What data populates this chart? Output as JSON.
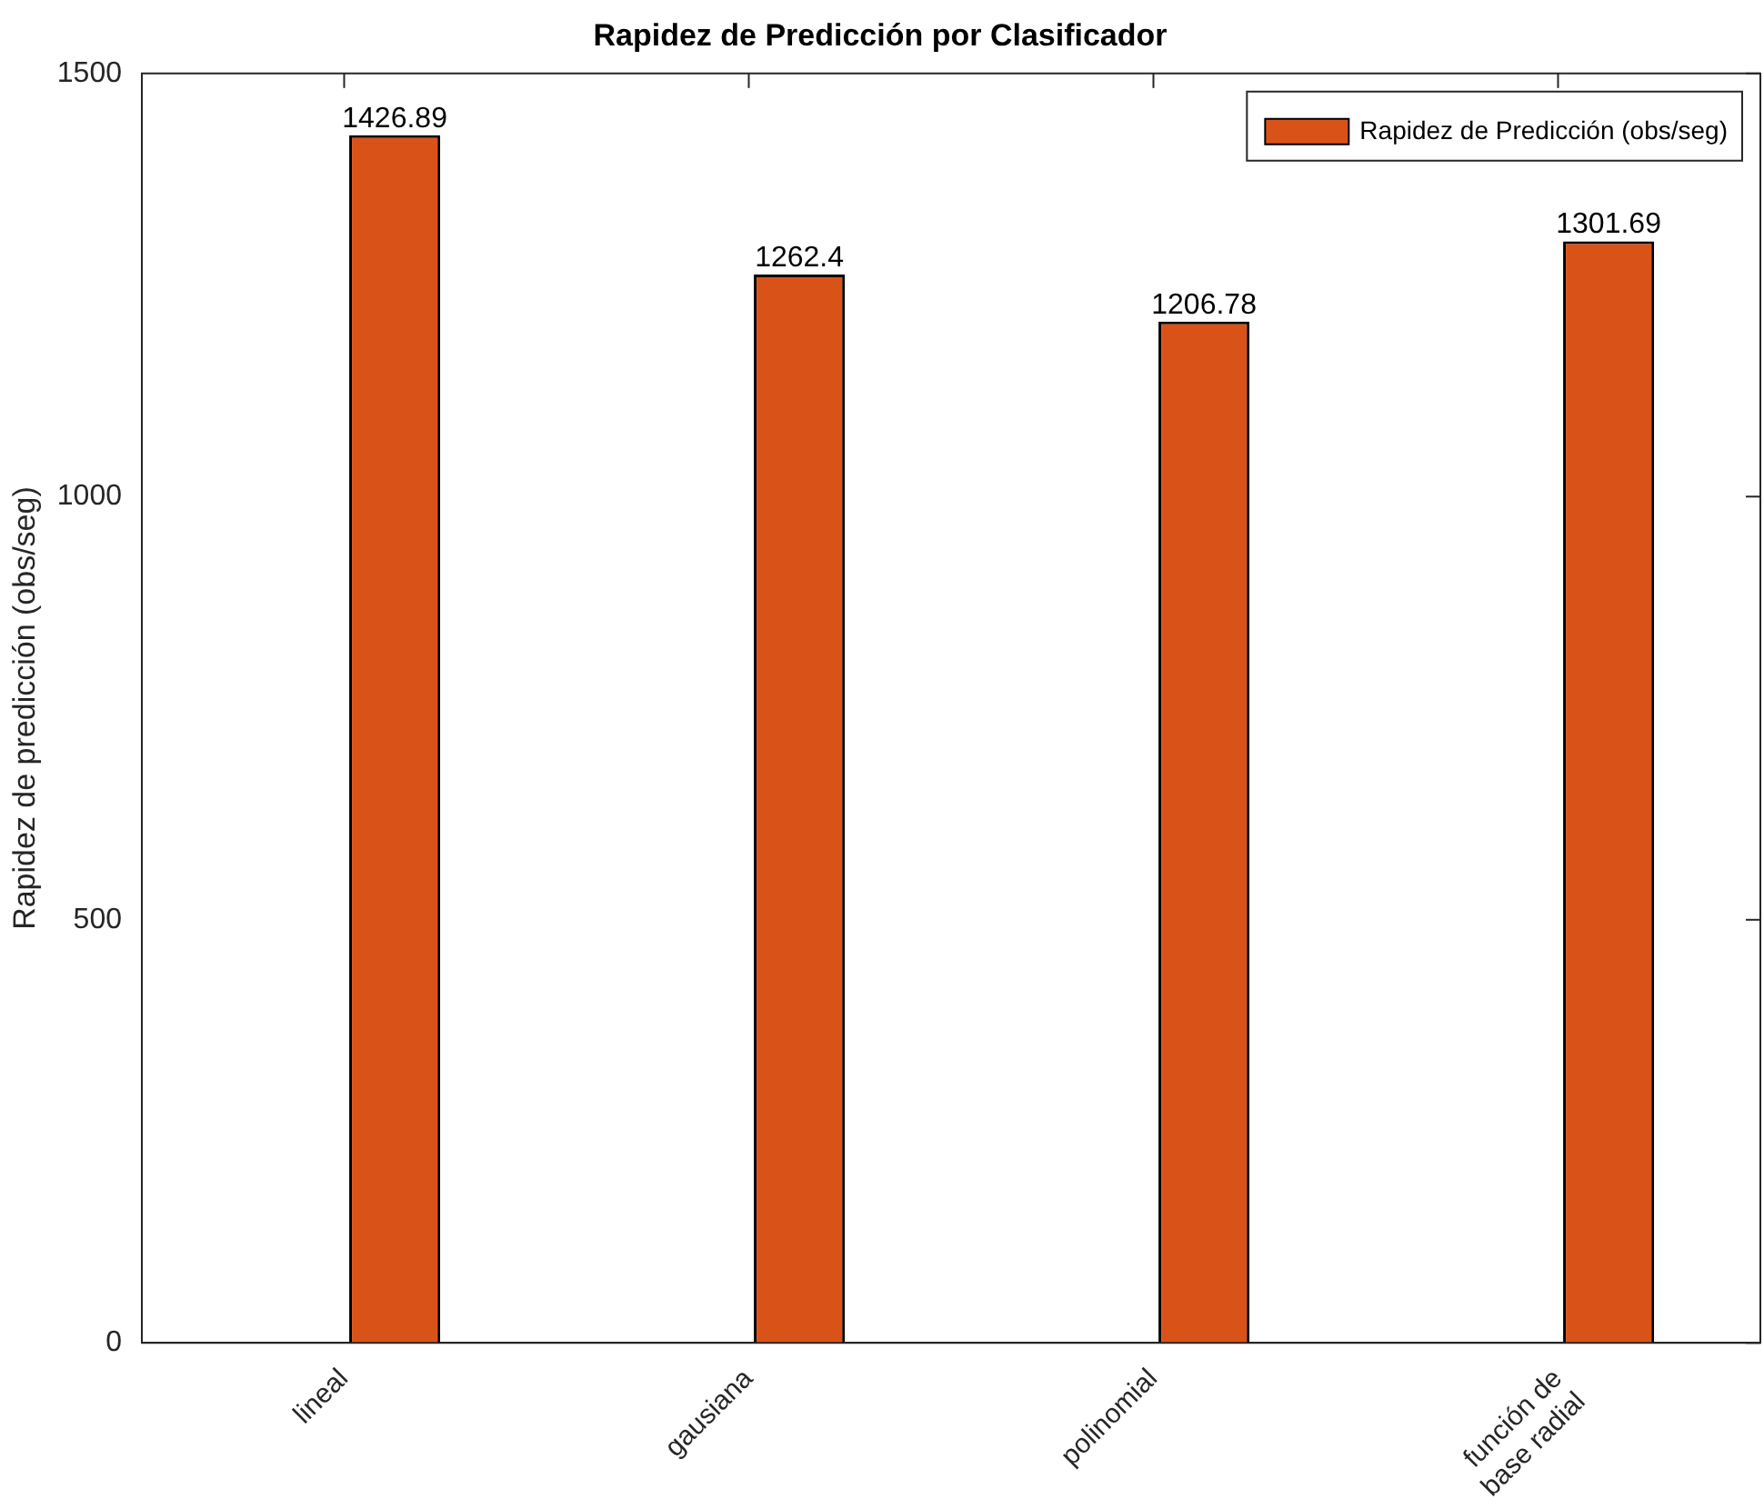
{
  "chart_data": {
    "type": "bar",
    "title": "Rapidez de Predicción por Clasificador",
    "ylabel": "Rapidez de predicción (obs/seg)",
    "categories": [
      "lineal",
      "gausiana",
      "polinomial",
      "función de base radial"
    ],
    "series": [
      {
        "color": "#0072bd",
        "values": [
          0,
          0,
          0,
          0
        ]
      },
      {
        "name": "Rapidez de Predicción (obs/seg)",
        "color": "#d95319",
        "values": [
          1426.89,
          1262.4,
          1206.78,
          1301.69
        ],
        "value_labels": [
          "1426.89",
          "1262.4",
          "1206.78",
          "1301.69"
        ]
      }
    ],
    "ylim": [
      0,
      1500
    ],
    "yticks": [
      0,
      500,
      1000,
      1500
    ],
    "grid": false,
    "legend": "top right"
  }
}
